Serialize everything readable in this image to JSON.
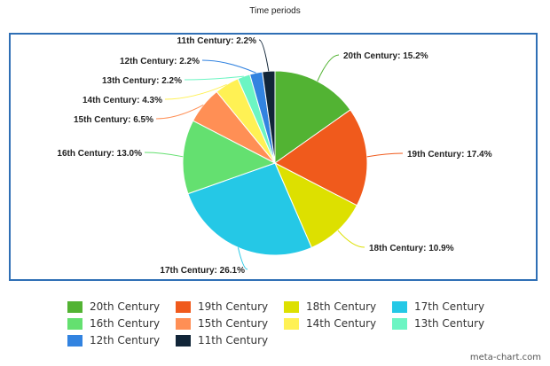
{
  "chart_data": {
    "type": "pie",
    "title": "Time periods",
    "slices": [
      {
        "label": "20th Century",
        "value": 15.2,
        "color": "#52b333"
      },
      {
        "label": "19th Century",
        "value": 17.4,
        "color": "#f05a1c"
      },
      {
        "label": "18th Century",
        "value": 10.9,
        "color": "#dde000"
      },
      {
        "label": "17th Century",
        "value": 26.1,
        "color": "#25c8e6"
      },
      {
        "label": "16th Century",
        "value": 13.0,
        "color": "#64e070"
      },
      {
        "label": "15th Century",
        "value": 6.5,
        "color": "#ff8f55"
      },
      {
        "label": "14th Century",
        "value": 4.3,
        "color": "#fff154"
      },
      {
        "label": "13th Century",
        "value": 2.2,
        "color": "#6cf5c3"
      },
      {
        "label": "12th Century",
        "value": 2.2,
        "color": "#3283e0"
      },
      {
        "label": "11th Century",
        "value": 2.2,
        "color": "#112538"
      }
    ],
    "legend": "bottom"
  },
  "footer": {
    "watermark": "meta-chart.com"
  }
}
